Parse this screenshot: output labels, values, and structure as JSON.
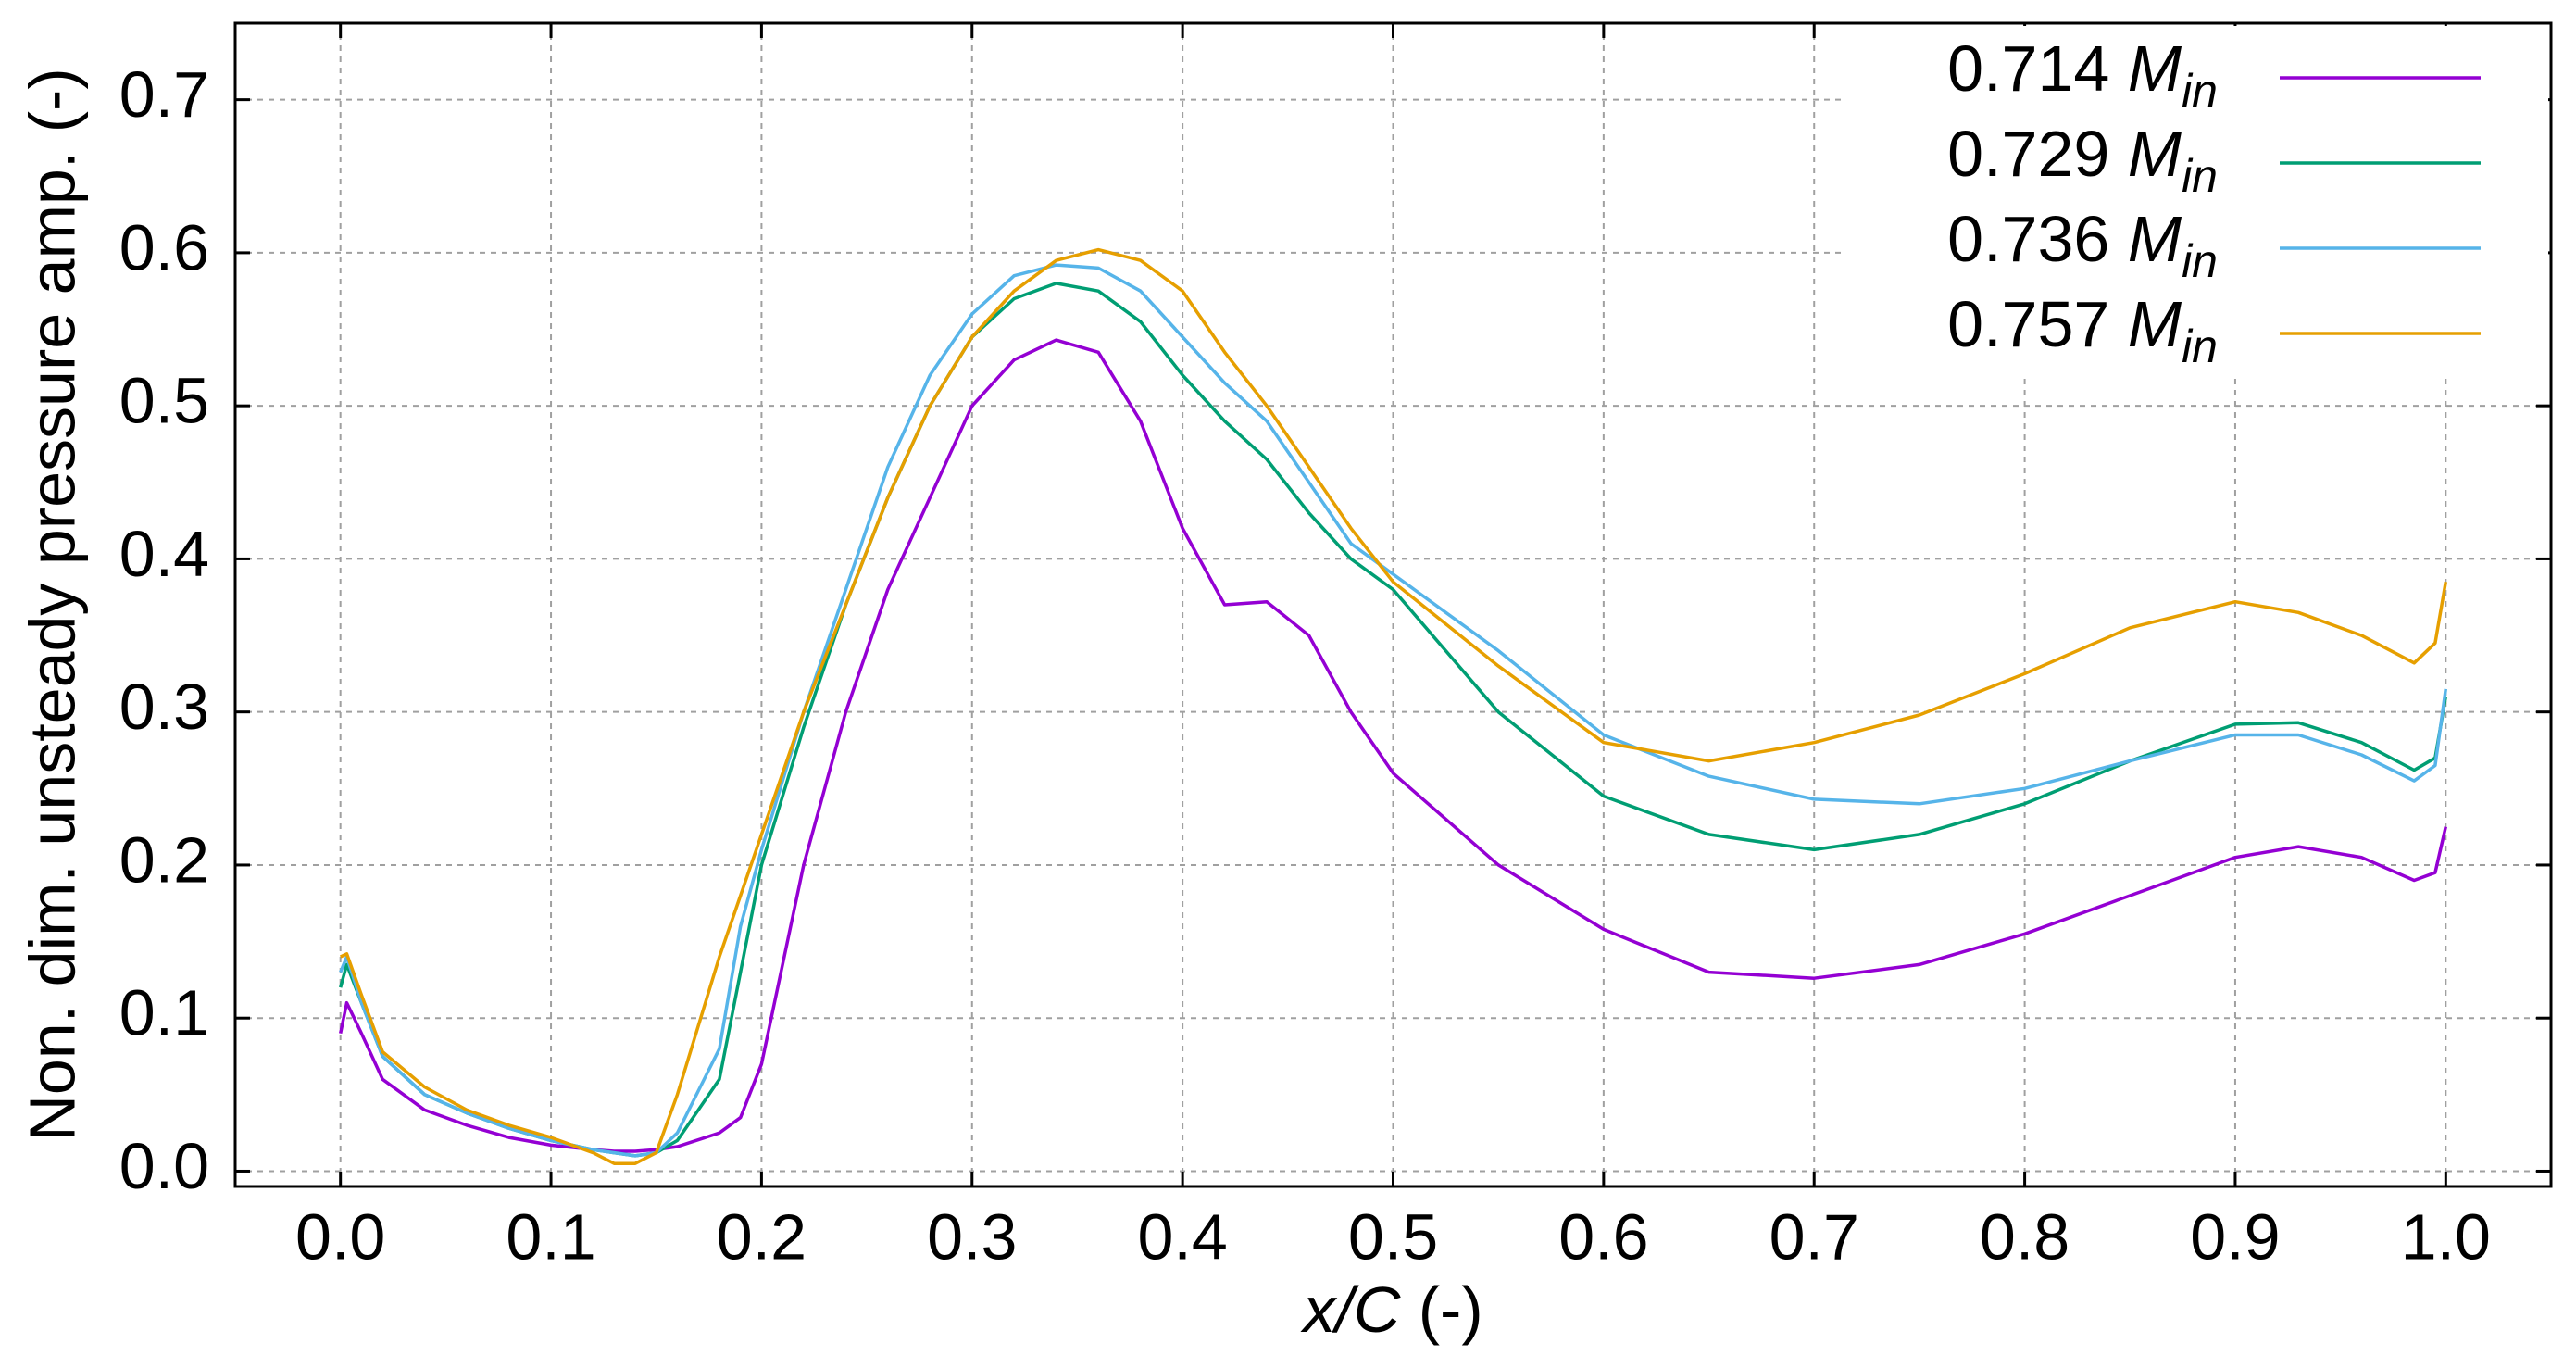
{
  "chart_data": {
    "type": "line",
    "xlabel": "x/C (-)",
    "ylabel": "Non. dim. unsteady pressure amp. (-)",
    "x": [
      0.0,
      0.003,
      0.01,
      0.02,
      0.04,
      0.06,
      0.08,
      0.1,
      0.12,
      0.13,
      0.14,
      0.15,
      0.16,
      0.18,
      0.19,
      0.2,
      0.22,
      0.24,
      0.26,
      0.28,
      0.3,
      0.32,
      0.34,
      0.36,
      0.38,
      0.4,
      0.42,
      0.44,
      0.46,
      0.48,
      0.5,
      0.55,
      0.6,
      0.65,
      0.7,
      0.75,
      0.8,
      0.85,
      0.9,
      0.93,
      0.96,
      0.985,
      0.995,
      1.0
    ],
    "series": [
      {
        "name": "0.714 Min",
        "color": "#9400d3",
        "values": [
          0.09,
          0.11,
          0.09,
          0.06,
          0.04,
          0.03,
          0.022,
          0.017,
          0.014,
          0.013,
          0.013,
          0.014,
          0.016,
          0.025,
          0.035,
          0.07,
          0.2,
          0.3,
          0.38,
          0.44,
          0.5,
          0.53,
          0.543,
          0.535,
          0.49,
          0.42,
          0.37,
          0.372,
          0.35,
          0.3,
          0.26,
          0.2,
          0.158,
          0.13,
          0.126,
          0.135,
          0.155,
          0.18,
          0.205,
          0.212,
          0.205,
          0.19,
          0.195,
          0.225
        ]
      },
      {
        "name": "0.729 Min",
        "color": "#009e73",
        "values": [
          0.12,
          0.135,
          0.11,
          0.075,
          0.05,
          0.038,
          0.028,
          0.02,
          0.014,
          0.012,
          0.01,
          0.012,
          0.02,
          0.06,
          0.13,
          0.2,
          0.29,
          0.37,
          0.44,
          0.5,
          0.545,
          0.57,
          0.58,
          0.575,
          0.555,
          0.52,
          0.49,
          0.465,
          0.43,
          0.4,
          0.38,
          0.3,
          0.245,
          0.22,
          0.21,
          0.22,
          0.24,
          0.268,
          0.292,
          0.293,
          0.28,
          0.262,
          0.27,
          0.31
        ]
      },
      {
        "name": "0.736 Min",
        "color": "#56b4e9",
        "values": [
          0.13,
          0.14,
          0.11,
          0.075,
          0.05,
          0.038,
          0.028,
          0.02,
          0.014,
          0.012,
          0.01,
          0.012,
          0.025,
          0.08,
          0.16,
          0.21,
          0.3,
          0.38,
          0.46,
          0.52,
          0.56,
          0.585,
          0.592,
          0.59,
          0.575,
          0.545,
          0.515,
          0.49,
          0.45,
          0.41,
          0.39,
          0.34,
          0.285,
          0.258,
          0.243,
          0.24,
          0.25,
          0.268,
          0.285,
          0.285,
          0.272,
          0.255,
          0.265,
          0.315
        ]
      },
      {
        "name": "0.757 Min",
        "color": "#e69f00",
        "values": [
          0.14,
          0.142,
          0.115,
          0.078,
          0.055,
          0.04,
          0.03,
          0.022,
          0.012,
          0.005,
          0.005,
          0.012,
          0.05,
          0.14,
          0.18,
          0.22,
          0.3,
          0.37,
          0.44,
          0.5,
          0.545,
          0.575,
          0.595,
          0.602,
          0.595,
          0.575,
          0.535,
          0.5,
          0.46,
          0.42,
          0.385,
          0.33,
          0.28,
          0.268,
          0.28,
          0.298,
          0.325,
          0.355,
          0.372,
          0.365,
          0.35,
          0.332,
          0.345,
          0.385
        ]
      }
    ],
    "xlim": [
      -0.05,
      1.05
    ],
    "ylim": [
      -0.01,
      0.75
    ],
    "xticks": [
      {
        "value": 0.0,
        "label": "0.0"
      },
      0.1,
      0.2,
      0.3,
      0.4,
      0.5,
      0.6,
      0.7,
      0.8,
      0.9,
      {
        "value": 1.0,
        "label": "1.0"
      }
    ],
    "yticks": [
      {
        "value": 0.0,
        "label": "0.0"
      },
      0.1,
      0.2,
      0.3,
      0.4,
      0.5,
      0.6,
      0.7
    ],
    "grid": true,
    "legend": "upper right"
  }
}
